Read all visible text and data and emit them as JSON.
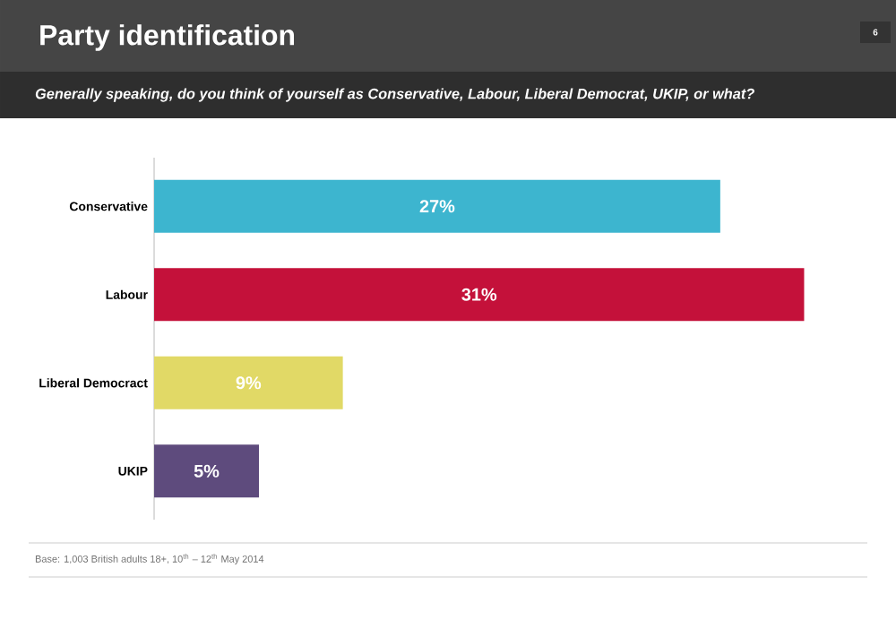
{
  "chart_data": {
    "type": "bar",
    "orientation": "horizontal",
    "title": "Party identification",
    "subtitle": "Generally speaking, do you think of yourself as Conservative, Labour, Liberal Democrat, UKIP, or what?",
    "categories": [
      "Conservative",
      "Labour",
      "Liberal Democract",
      "UKIP"
    ],
    "values": [
      27,
      31,
      9,
      5
    ],
    "value_labels": [
      "27%",
      "31%",
      "9%",
      "5%"
    ],
    "colors": [
      "#3db5cf",
      "#c4113a",
      "#e1d966",
      "#5e4b7d"
    ],
    "annotations": [
      "Base: 1,003 British adults 18+, 10$^{th}$ – 12$^{th}$ May 2014",
      "6"
    ]
  }
}
